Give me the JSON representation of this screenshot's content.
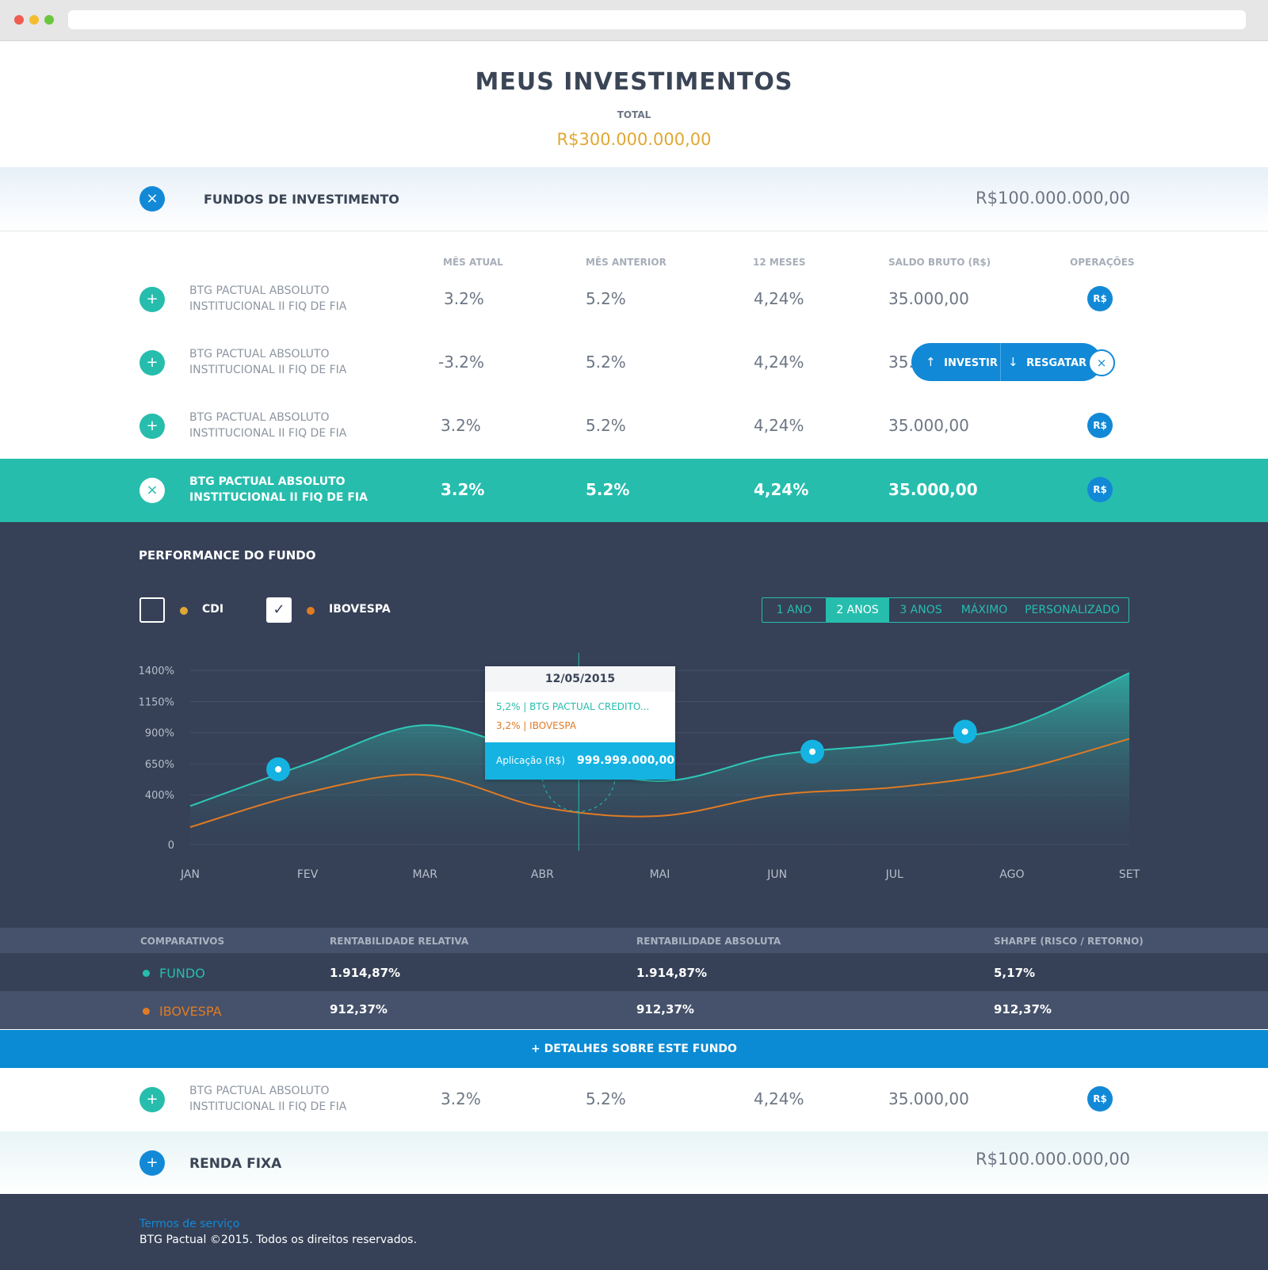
{
  "page": {
    "title": "MEUS INVESTIMENTOS",
    "total_label": "TOTAL",
    "total_value": "R$300.000.000,00"
  },
  "colors": {
    "accent_teal": "#26bdad",
    "accent_blue": "#1289d7",
    "gold": "#e0a833",
    "orange": "#e07b24",
    "dark_panel": "#364157"
  },
  "fundos": {
    "title": "FUNDOS DE INVESTIMENTO",
    "total": "R$100.000.000,00",
    "collapse_icon": "×",
    "columns": [
      "MÊS ATUAL",
      "MÊS ANTERIOR",
      "12 MESES",
      "SALDO BRUTO (R$)",
      "OPERAÇÕES"
    ],
    "rows": [
      {
        "name1": "BTG PACTUAL ABSOLUTO",
        "name2": "INSTITUCIONAL II FIQ DE  FIA",
        "mes_atual": "3.2%",
        "mes_anterior": "5.2%",
        "meses12": "4,24%",
        "saldo": "35.000,00",
        "op": "R$",
        "icon": "+"
      },
      {
        "name1": "BTG PACTUAL ABSOLUTO",
        "name2": "INSTITUCIONAL II FIQ DE  FIA",
        "mes_atual": "-3.2%",
        "mes_anterior": "5.2%",
        "meses12": "4,24%",
        "saldo": "35.",
        "op": "",
        "icon": "+"
      },
      {
        "name1": "BTG PACTUAL ABSOLUTO",
        "name2": "INSTITUCIONAL II FIQ DE  FIA",
        "mes_atual": "3.2%",
        "mes_anterior": "5.2%",
        "meses12": "4,24%",
        "saldo": "35.000,00",
        "op": "R$",
        "icon": "+"
      },
      {
        "name1": "BTG PACTUAL ABSOLUTO",
        "name2": "INSTITUCIONAL II FIQ DE  FIA",
        "mes_atual": "3.2%",
        "mes_anterior": "5.2%",
        "meses12": "4,24%",
        "saldo": "35.000,00",
        "op": "R$",
        "icon": "×"
      },
      {
        "name1": "BTG PACTUAL ABSOLUTO",
        "name2": "INSTITUCIONAL II FIQ DE  FIA",
        "mes_atual": "3.2%",
        "mes_anterior": "5.2%",
        "meses12": "4,24%",
        "saldo": "35.000,00",
        "op": "R$",
        "icon": "+"
      }
    ],
    "popup": {
      "investir": "INVESTIR",
      "resgatar": "RESGATAR",
      "close": "×"
    }
  },
  "performance": {
    "title": "PERFORMANCE DO FUNDO",
    "legend": [
      {
        "label": "CDI",
        "checked": false,
        "color": "#e0a833"
      },
      {
        "label": "IBOVESPA",
        "checked": true,
        "color": "#e07b24"
      }
    ],
    "check_mark": "✓",
    "ranges": [
      "1 ANO",
      "2 ANOS",
      "3 ANOS",
      "MÁXIMO",
      "PERSONALIZADO"
    ],
    "active_range": "2 ANOS",
    "tooltip": {
      "date": "12/05/2015",
      "line1": "5,2%  |  BTG PACTUAL CREDITO...",
      "line2": "3,2%  |  IBOVESPA",
      "aplicacao_label": "Aplicação (R$)",
      "aplicacao_value": "999.999.000,00"
    }
  },
  "chart_data": {
    "type": "area",
    "x": [
      "JAN",
      "FEV",
      "MAR",
      "ABR",
      "MAI",
      "JUN",
      "JUL",
      "AGO",
      "SET"
    ],
    "y_ticks": [
      "1400%",
      "1150%",
      "900%",
      "650%",
      "400%",
      "0"
    ],
    "ylim": [
      0,
      1650
    ],
    "series": [
      {
        "values": [
          310,
          650,
          960,
          710,
          510,
          720,
          810,
          950,
          1380
        ],
        "color": "#2ec9b8"
      },
      {
        "values": [
          140,
          420,
          560,
          300,
          230,
          400,
          460,
          590,
          850
        ],
        "color": "#e07b24"
      }
    ],
    "highlight_x": "ABR",
    "grid": true
  },
  "comparativos": {
    "headers": [
      "COMPARATIVOS",
      "RENTABILIDADE RELATIVA",
      "RENTABILIDADE ABSOLUTA",
      "SHARPE (RISCO / RETORNO)"
    ],
    "rows": [
      {
        "name": "FUNDO",
        "rel": "1.914,87%",
        "abs": "1.914,87%",
        "sharpe": "5,17%",
        "color": "#26bdad"
      },
      {
        "name": "IBOVESPA",
        "rel": "912,37%",
        "abs": "912,37%",
        "sharpe": "912,37%",
        "color": "#e07b24"
      }
    ],
    "details_link": "+ DETALHES SOBRE ESTE FUNDO"
  },
  "renda_fixa": {
    "title": "RENDA FIXA",
    "total": "R$100.000.000,00",
    "expand_icon": "+"
  },
  "footer": {
    "terms": "Termos de serviço",
    "copyright": "BTG Pactual ©2015. Todos os direitos reservados."
  }
}
